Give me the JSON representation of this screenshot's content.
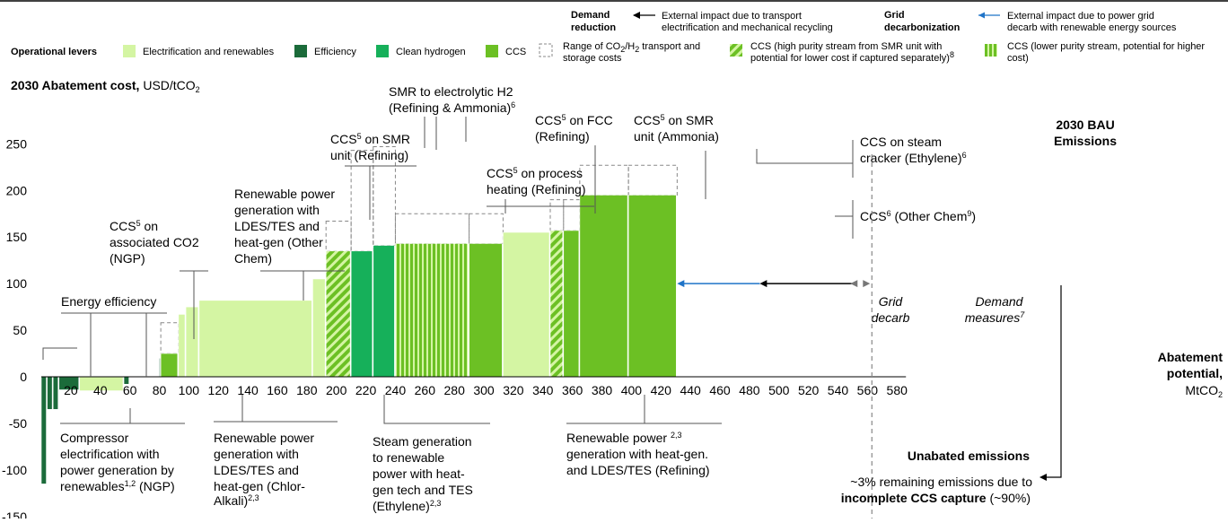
{
  "legend": {
    "demand_label": "Demand reduction",
    "demand_text": "External impact due to transport electrification and mechanical recycling",
    "grid_label": "Grid decarbonization",
    "grid_text": "External impact due to power grid decarb with renewable energy sources",
    "operational_levers": "Operational levers",
    "items": [
      {
        "label": "Electrification and renewables",
        "color": "#d4f5a3"
      },
      {
        "label": "Efficiency",
        "color": "#1b6b3a"
      },
      {
        "label": "Clean hydrogen",
        "color": "#16b05a"
      },
      {
        "label": "CCS",
        "color": "#6cc024"
      }
    ],
    "range_label_1": "Range of CO",
    "range_label_sub": "2",
    "range_label_2": "/H",
    "range_label_sub2": "2",
    "range_label_3": " transport and",
    "range_label_line2": "storage costs",
    "ccs_high": "CCS (high purity stream from SMR unit with",
    "ccs_high_2": "potential for lower cost if captured separately)",
    "ccs_high_sup": "8",
    "ccs_low": "CCS (lower purity stream, potential for higher",
    "ccs_low_2": "cost)"
  },
  "chart_title": {
    "bold": "2030 Abatement cost,",
    "rest": " USD/tCO",
    "sub": "2"
  },
  "chart_data": {
    "type": "bar",
    "subtype": "marginal-abatement-cost-curve",
    "xlabel": "Abatement potential, MtCO2",
    "ylabel": "2030 Abatement cost, USD/tCO2",
    "xlim": [
      0,
      580
    ],
    "ylim": [
      -150,
      250
    ],
    "x_ticks": [
      20,
      40,
      60,
      80,
      100,
      120,
      140,
      160,
      180,
      200,
      220,
      240,
      260,
      280,
      300,
      320,
      340,
      360,
      380,
      400,
      420,
      440,
      460,
      480,
      500,
      520,
      540,
      560,
      580
    ],
    "y_ticks": [
      250,
      200,
      150,
      100,
      50,
      0,
      -50,
      -100,
      -150
    ],
    "bars": [
      {
        "x0": 0,
        "x1": 4,
        "value": -115,
        "lever": "Efficiency"
      },
      {
        "x0": 4,
        "x1": 8,
        "value": -35,
        "lever": "Efficiency"
      },
      {
        "x0": 8,
        "x1": 12,
        "value": -35,
        "lever": "Efficiency"
      },
      {
        "x0": 12,
        "x1": 26,
        "value": -14,
        "lever": "Efficiency"
      },
      {
        "x0": 26,
        "x1": 56,
        "value": -15,
        "lever": "Electrification and renewables"
      },
      {
        "x0": 56,
        "x1": 60,
        "value": -8,
        "lever": "Efficiency"
      },
      {
        "x0": 80,
        "x1": 81,
        "value": 20,
        "lever": "Efficiency"
      },
      {
        "x0": 81,
        "x1": 93,
        "value": 25,
        "lever": "CCS",
        "range_top": 58
      },
      {
        "x0": 93,
        "x1": 98,
        "value": 67,
        "lever": "Electrification and renewables"
      },
      {
        "x0": 98,
        "x1": 107,
        "value": 75,
        "lever": "Electrification and renewables"
      },
      {
        "x0": 107,
        "x1": 184,
        "value": 82,
        "lever": "Electrification and renewables"
      },
      {
        "x0": 184,
        "x1": 193,
        "value": 105,
        "lever": "Electrification and renewables"
      },
      {
        "x0": 193,
        "x1": 210,
        "value": 135,
        "lever": "CCS",
        "pattern": "high-purity",
        "range_top": 167
      },
      {
        "x0": 210,
        "x1": 225,
        "value": 135,
        "lever": "Clean hydrogen",
        "range_top": 243
      },
      {
        "x0": 225,
        "x1": 240,
        "value": 141,
        "lever": "Clean hydrogen",
        "range_top": 247
      },
      {
        "x0": 240,
        "x1": 290,
        "value": 143,
        "lever": "CCS",
        "pattern": "low-purity",
        "range_top": 175
      },
      {
        "x0": 290,
        "x1": 313,
        "value": 143,
        "lever": "CCS",
        "range_top": 175
      },
      {
        "x0": 313,
        "x1": 345,
        "value": 155,
        "lever": "Electrification and renewables"
      },
      {
        "x0": 345,
        "x1": 354,
        "value": 157,
        "lever": "CCS",
        "pattern": "high-purity",
        "range_top": 190
      },
      {
        "x0": 354,
        "x1": 365,
        "value": 157,
        "lever": "CCS",
        "range_top": 190
      },
      {
        "x0": 365,
        "x1": 398,
        "value": 195,
        "lever": "CCS",
        "range_top": 227
      },
      {
        "x0": 398,
        "x1": 431,
        "value": 195,
        "lever": "CCS",
        "range_top": 227
      }
    ],
    "annotations": [
      {
        "text": "Energy efficiency"
      },
      {
        "text": "CCS5 on associated CO2 (NGP)"
      },
      {
        "text": "Renewable power generation with LDES/TES and heat-gen (Other Chem)"
      },
      {
        "text": "CCS5 on SMR unit (Refining)"
      },
      {
        "text": "SMR to electrolytic H2 (Refining & Ammonia)6"
      },
      {
        "text": "CCS5 on FCC (Refining)"
      },
      {
        "text": "CCS5 on process heating (Refining)"
      },
      {
        "text": "CCS5 on SMR unit (Ammonia)"
      },
      {
        "text": "CCS on steam cracker (Ethylene)6"
      },
      {
        "text": "CCS6 (Other Chem9)"
      },
      {
        "text": "Compressor electrification with power generation by renewables1,2 (NGP)"
      },
      {
        "text": "Renewable power generation with LDES/TES and heat-gen (Chlor-Alkali)2,3"
      },
      {
        "text": "Steam generation to renewable power with heat-gen tech and TES (Ethylene)2,3"
      },
      {
        "text": "Renewable power 2,3 generation with heat-gen. and LDES/TES (Refining)"
      }
    ],
    "external": [
      {
        "label": "Grid decarb",
        "from": 431,
        "to": 487
      },
      {
        "label": "Demand measures7",
        "from": 487,
        "to": 563
      }
    ],
    "bau_label": "2030 BAU Emissions",
    "bau_x": 563,
    "unabated": {
      "title": "Unabated emissions",
      "text": "~3% remaining emissions due to incomplete CCS capture (~90%)"
    }
  },
  "labels": {
    "energy_eff": "Energy efficiency",
    "ccs_assoc": [
      "on",
      "associated CO2",
      "(NGP)"
    ],
    "renew_other": [
      "Renewable power",
      "generation with",
      "LDES/TES and",
      "heat-gen (Other",
      "Chem)"
    ],
    "ccs_smr_ref": [
      "on SMR",
      "unit (Refining)"
    ],
    "smr_h2": [
      "SMR to electrolytic H2",
      "(Refining & Ammonia)"
    ],
    "ccs_fcc": [
      "on FCC",
      "(Refining)"
    ],
    "ccs_proc": [
      "on process",
      "heating (Refining)"
    ],
    "ccs_smr_amm": [
      "on SMR",
      "unit (Ammonia)"
    ],
    "ccs_cracker": [
      "CCS on steam",
      "cracker (Ethylene)"
    ],
    "ccs_other": [
      "CCS",
      " (Other Chem",
      ")"
    ],
    "compressor": [
      "Compressor",
      "electrification with",
      "power generation by",
      "renewables",
      " (NGP)"
    ],
    "renew_chlor": [
      "Renewable power",
      "generation with",
      "LDES/TES and",
      "heat-gen (Chlor-",
      "Alkali)"
    ],
    "steam_gen": [
      "Steam generation",
      "to renewable",
      "power with heat-",
      "gen tech and TES",
      "(Ethylene)"
    ],
    "renew_ref": [
      "Renewable power ",
      "generation with heat-gen.",
      "and LDES/TES (Refining)"
    ],
    "ccs_word": "CCS",
    "grid_decarb": [
      "Grid",
      "decarb"
    ],
    "demand_measures": [
      "Demand",
      "measures"
    ],
    "bau": [
      "2030 BAU",
      "Emissions"
    ],
    "x_axis": [
      "Abatement",
      "potential,",
      "MtCO"
    ],
    "unabated_title": "Unabated emissions",
    "unabated_line1": "~3% remaining emissions due to",
    "unabated_line2_bold": "incomplete CCS capture",
    "unabated_line2_rest": " (~90%)"
  }
}
